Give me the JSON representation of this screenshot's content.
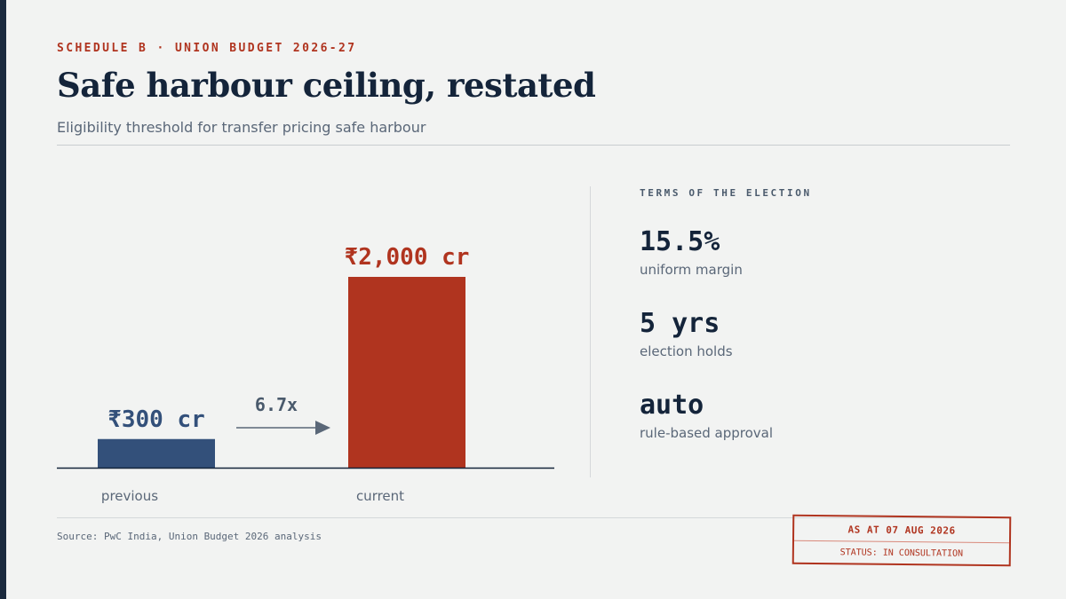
{
  "header": {
    "eyebrow": "SCHEDULE B · UNION BUDGET 2026-27",
    "title": "Safe harbour ceiling, restated",
    "subtitle": "Eligibility threshold for transfer pricing safe harbour"
  },
  "chart_data": {
    "type": "bar",
    "categories": [
      "previous",
      "current"
    ],
    "values": [
      300,
      2000
    ],
    "value_labels": [
      "₹300 cr",
      "₹2,000 cr"
    ],
    "colors": [
      "#33507a",
      "#b0341f"
    ],
    "ylim": [
      0,
      2000
    ],
    "ratio_label": "6.7x",
    "axis_color": "#14243a"
  },
  "terms": {
    "heading": "TERMS OF THE ELECTION",
    "items": [
      {
        "value": "15.5%",
        "desc": "uniform margin"
      },
      {
        "value": "5 yrs",
        "desc": "election holds"
      },
      {
        "value": "auto",
        "desc": "rule-based approval"
      }
    ]
  },
  "footer": {
    "source": "Source: PwC India, Union Budget 2026 analysis"
  },
  "stamp": {
    "line1": "AS AT 07 AUG 2026",
    "line2": "STATUS: IN CONSULTATION"
  }
}
